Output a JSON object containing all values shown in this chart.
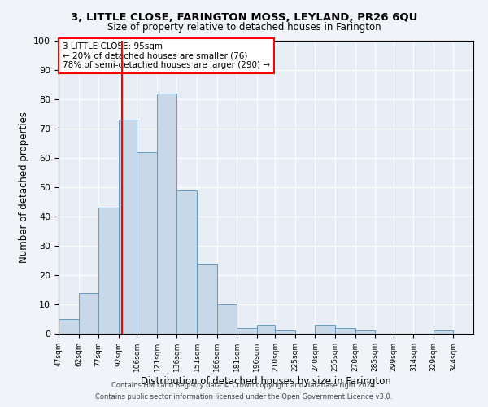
{
  "title": "3, LITTLE CLOSE, FARINGTON MOSS, LEYLAND, PR26 6QU",
  "subtitle": "Size of property relative to detached houses in Farington",
  "xlabel": "Distribution of detached houses by size in Farington",
  "ylabel": "Number of detached properties",
  "bar_values": [
    5,
    14,
    43,
    73,
    62,
    82,
    49,
    24,
    10,
    2,
    3,
    1,
    0,
    3,
    2,
    1,
    0,
    0,
    0,
    1,
    0
  ],
  "bin_edges": [
    47,
    62,
    77,
    92,
    106,
    121,
    136,
    151,
    166,
    181,
    196,
    210,
    225,
    240,
    255,
    270,
    285,
    299,
    314,
    329,
    344,
    359
  ],
  "tick_labels": [
    "47sqm",
    "62sqm",
    "77sqm",
    "92sqm",
    "106sqm",
    "121sqm",
    "136sqm",
    "151sqm",
    "166sqm",
    "181sqm",
    "196sqm",
    "210sqm",
    "225sqm",
    "240sqm",
    "255sqm",
    "270sqm",
    "285sqm",
    "299sqm",
    "314sqm",
    "329sqm",
    "344sqm"
  ],
  "bar_color": "#c8d8e8",
  "bar_edgecolor": "#6699bb",
  "red_line_x": 95,
  "ylim": [
    0,
    100
  ],
  "yticks": [
    0,
    10,
    20,
    30,
    40,
    50,
    60,
    70,
    80,
    90,
    100
  ],
  "annotation_text": "3 LITTLE CLOSE: 95sqm\n← 20% of detached houses are smaller (76)\n78% of semi-detached houses are larger (290) →",
  "annotation_box_color": "white",
  "annotation_box_edgecolor": "red",
  "bg_color": "#e8eef5",
  "fig_bg_color": "#f0f4f8",
  "footer_line1": "Contains HM Land Registry data © Crown copyright and database right 2024.",
  "footer_line2": "Contains public sector information licensed under the Open Government Licence v3.0."
}
